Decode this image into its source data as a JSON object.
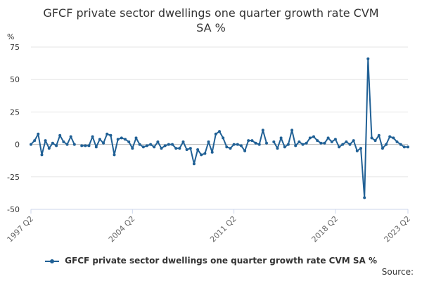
{
  "chart_data": {
    "type": "line",
    "title_line1": "GFCF private sector dwellings one quarter growth rate CVM",
    "title_line2": "SA %",
    "ylabel": "%",
    "ylim": [
      -50,
      75
    ],
    "yticks": [
      75,
      50,
      25,
      0,
      -25,
      -50
    ],
    "x_start_label": "1997 Q2",
    "xtick_labels": [
      "1997 Q2",
      "2004 Q2",
      "2011 Q2",
      "2018 Q2",
      "2023 Q2"
    ],
    "xtick_indices": [
      0,
      28,
      56,
      84,
      104
    ],
    "color": "#206095",
    "series": [
      {
        "name": "GFCF private sector dwellings one quarter growth rate CVM SA %",
        "values": [
          0,
          3,
          8,
          -8,
          3,
          -3,
          1,
          -1,
          7,
          2,
          0,
          6,
          0,
          null,
          -1,
          -1,
          -1,
          6,
          -2,
          4,
          1,
          8,
          7,
          -8,
          4,
          5,
          4,
          2,
          -3,
          5,
          0,
          -2,
          -1,
          0,
          -2,
          2,
          -3,
          -1,
          0,
          0,
          -3,
          -3,
          2,
          -4,
          -3,
          -15,
          -4,
          -8,
          -7,
          2,
          -6,
          8,
          10,
          5,
          -2,
          -3,
          0,
          0,
          -1,
          -5,
          3,
          3,
          1,
          0,
          11,
          1,
          null,
          2,
          -3,
          5,
          -2,
          0,
          11,
          -1,
          2,
          0,
          1,
          5,
          6,
          3,
          1,
          1,
          5,
          2,
          4,
          -2,
          0,
          2,
          0,
          3,
          -5,
          -3,
          -41,
          66,
          5,
          3,
          7,
          -3,
          0,
          6,
          5,
          2,
          0,
          -2,
          -2
        ]
      }
    ],
    "source_label": "Source:"
  }
}
